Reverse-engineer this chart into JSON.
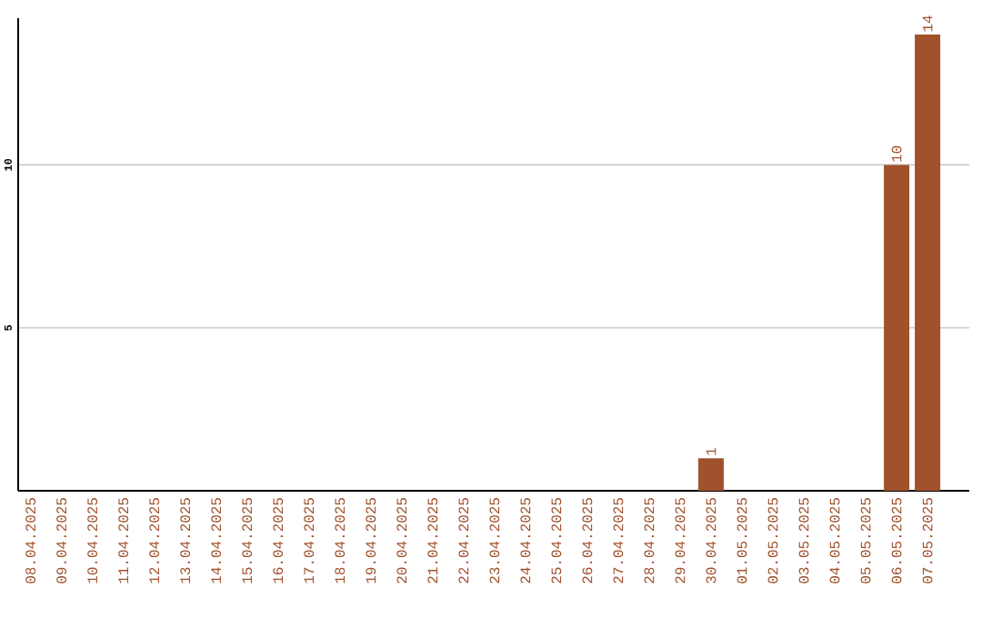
{
  "chart_data": {
    "type": "bar",
    "categories": [
      "08.04.2025",
      "09.04.2025",
      "10.04.2025",
      "11.04.2025",
      "12.04.2025",
      "13.04.2025",
      "14.04.2025",
      "15.04.2025",
      "16.04.2025",
      "17.04.2025",
      "18.04.2025",
      "19.04.2025",
      "20.04.2025",
      "21.04.2025",
      "22.04.2025",
      "23.04.2025",
      "24.04.2025",
      "25.04.2025",
      "26.04.2025",
      "27.04.2025",
      "28.04.2025",
      "29.04.2025",
      "30.04.2025",
      "01.05.2025",
      "02.05.2025",
      "03.05.2025",
      "04.05.2025",
      "05.05.2025",
      "06.05.2025",
      "07.05.2025"
    ],
    "values": [
      0,
      0,
      0,
      0,
      0,
      0,
      0,
      0,
      0,
      0,
      0,
      0,
      0,
      0,
      0,
      0,
      0,
      0,
      0,
      0,
      0,
      0,
      1,
      0,
      0,
      0,
      0,
      0,
      10,
      14
    ],
    "value_labels": [
      null,
      null,
      null,
      null,
      null,
      null,
      null,
      null,
      null,
      null,
      null,
      null,
      null,
      null,
      null,
      null,
      null,
      null,
      null,
      null,
      null,
      null,
      "1",
      null,
      null,
      null,
      null,
      null,
      "10",
      "14"
    ],
    "color": "#a0522d",
    "ylim": [
      0,
      14.5
    ],
    "yticks": [
      5,
      10
    ],
    "grid": "y"
  }
}
